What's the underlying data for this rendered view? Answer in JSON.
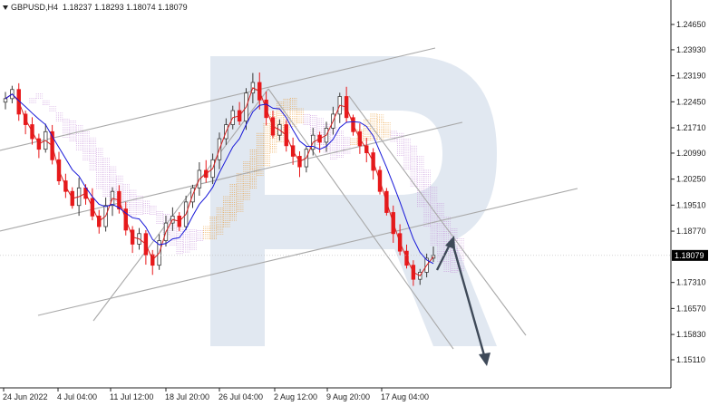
{
  "header": {
    "symbol": "GBPUSD,H4",
    "ohlc": "1.18237 1.18293 1.18074 1.18079"
  },
  "chart_data": {
    "type": "candlestick",
    "y_ticks": [
      "1.24650",
      "1.23930",
      "1.23190",
      "1.22450",
      "1.21710",
      "1.20990",
      "1.20250",
      "1.19510",
      "1.18770",
      "1.18079",
      "1.17310",
      "1.16570",
      "1.15830",
      "1.15110"
    ],
    "y_range": [
      1.1511,
      1.2465
    ],
    "current_price": "1.18079",
    "x_ticks": [
      "24 Jun 2022",
      "4 Jul 04:00",
      "11 Jul 12:00",
      "18 Jul 20:00",
      "26 Jul 04:00",
      "2 Aug 12:00",
      "9 Aug 20:00",
      "17 Aug 04:00"
    ],
    "close_series": [
      1.2254,
      1.228,
      1.221,
      1.218,
      1.214,
      1.211,
      1.216,
      1.208,
      1.202,
      1.199,
      1.195,
      1.2,
      1.197,
      1.192,
      1.189,
      1.195,
      1.199,
      1.194,
      1.188,
      1.184,
      1.187,
      1.181,
      1.178,
      1.185,
      1.19,
      1.192,
      1.189,
      1.196,
      1.2,
      1.205,
      1.203,
      1.208,
      1.214,
      1.218,
      1.222,
      1.219,
      1.227,
      1.23,
      1.225,
      1.22,
      1.215,
      1.218,
      1.212,
      1.209,
      1.206,
      1.211,
      1.215,
      1.213,
      1.217,
      1.221,
      1.226,
      1.22,
      1.216,
      1.212,
      1.21,
      1.205,
      1.199,
      1.193,
      1.187,
      1.182,
      1.178,
      1.174,
      1.176,
      1.18,
      1.1808
    ],
    "colors": {
      "bull": "#3a3a3a",
      "bear": "#e8191b",
      "kijun": "#1717d8",
      "tenkan": "#d61f1f",
      "cloud_a": "#e8901f",
      "cloud_b": "#c38bd8",
      "lines": "#a9a9a9",
      "arrow": "#3f4a59",
      "watermark": "#c9d6e6"
    }
  }
}
